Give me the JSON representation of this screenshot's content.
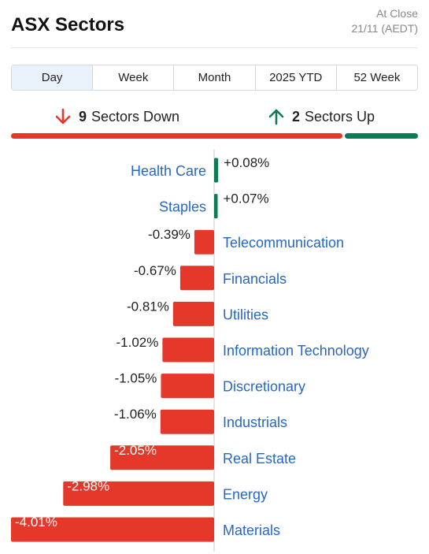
{
  "header": {
    "title": "ASX Sectors",
    "as_of_line1": "At Close",
    "as_of_line2": "21/11 (AEDT)"
  },
  "tabs": [
    {
      "label": "Day",
      "active": true
    },
    {
      "label": "Week",
      "active": false
    },
    {
      "label": "Month",
      "active": false
    },
    {
      "label": "2025 YTD",
      "active": false
    },
    {
      "label": "52 Week",
      "active": false
    }
  ],
  "summary": {
    "down_count": "9",
    "down_label": "Sectors Down",
    "up_count": "2",
    "up_label": "Sectors Up"
  },
  "colors": {
    "down": "#e4382a",
    "up": "#0e7a57",
    "link": "#2767c4"
  },
  "chart_data": {
    "type": "bar",
    "orientation": "horizontal",
    "categories": [
      "Health Care",
      "Staples",
      "Telecommunication",
      "Financials",
      "Utilities",
      "Information Technology",
      "Discretionary",
      "Industrials",
      "Real Estate",
      "Energy",
      "Materials"
    ],
    "values": [
      0.08,
      0.07,
      -0.39,
      -0.67,
      -0.81,
      -1.02,
      -1.05,
      -1.06,
      -2.05,
      -2.98,
      -4.01
    ],
    "value_labels": [
      "+0.08%",
      "+0.07%",
      "-0.39%",
      "-0.67%",
      "-0.81%",
      "-1.02%",
      "-1.05%",
      "-1.06%",
      "-2.05%",
      "-2.98%",
      "-4.01%"
    ],
    "unit": "%"
  }
}
